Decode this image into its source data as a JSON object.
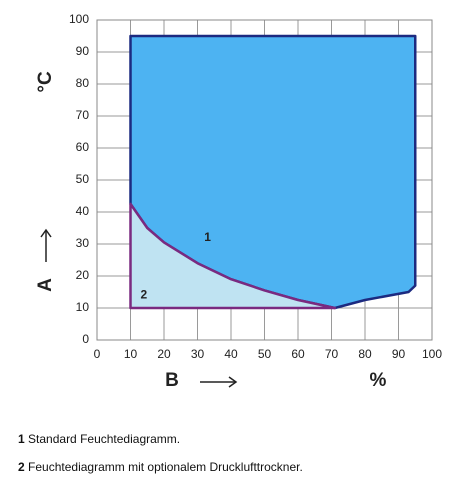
{
  "chart_data": {
    "type": "area",
    "xlabel": "B",
    "xunit": "%",
    "ylabel": "A",
    "yunit": "°C",
    "xlim": [
      0,
      100
    ],
    "ylim": [
      0,
      100
    ],
    "xticks": [
      0,
      10,
      20,
      30,
      40,
      50,
      60,
      70,
      80,
      90,
      100
    ],
    "yticks": [
      0,
      10,
      20,
      30,
      40,
      50,
      60,
      70,
      80,
      90,
      100
    ],
    "grid": true,
    "series": [
      {
        "name": "1",
        "color": "#4db3f2",
        "edge": "#1c2a80",
        "x": [
          10,
          95,
          95,
          93,
          80,
          71,
          60,
          50,
          40,
          30,
          20,
          15,
          10
        ],
        "y": [
          95,
          95,
          17,
          15,
          12.5,
          10,
          12.5,
          15.5,
          19,
          24,
          30.5,
          35,
          42.5
        ]
      },
      {
        "name": "2",
        "color": "#bfe3f2",
        "edge": "#7a2a80",
        "x": [
          10,
          71,
          60,
          50,
          40,
          30,
          20,
          15,
          10
        ],
        "y": [
          10,
          10,
          12.5,
          15.5,
          19,
          24,
          30.5,
          35,
          42.5
        ]
      }
    ]
  },
  "captions": [
    {
      "number": "1",
      "text": "Standard Feuchtediagramm."
    },
    {
      "number": "2",
      "text": "Feuchtediagramm mit optionalem Drucklufttrockner."
    }
  ]
}
